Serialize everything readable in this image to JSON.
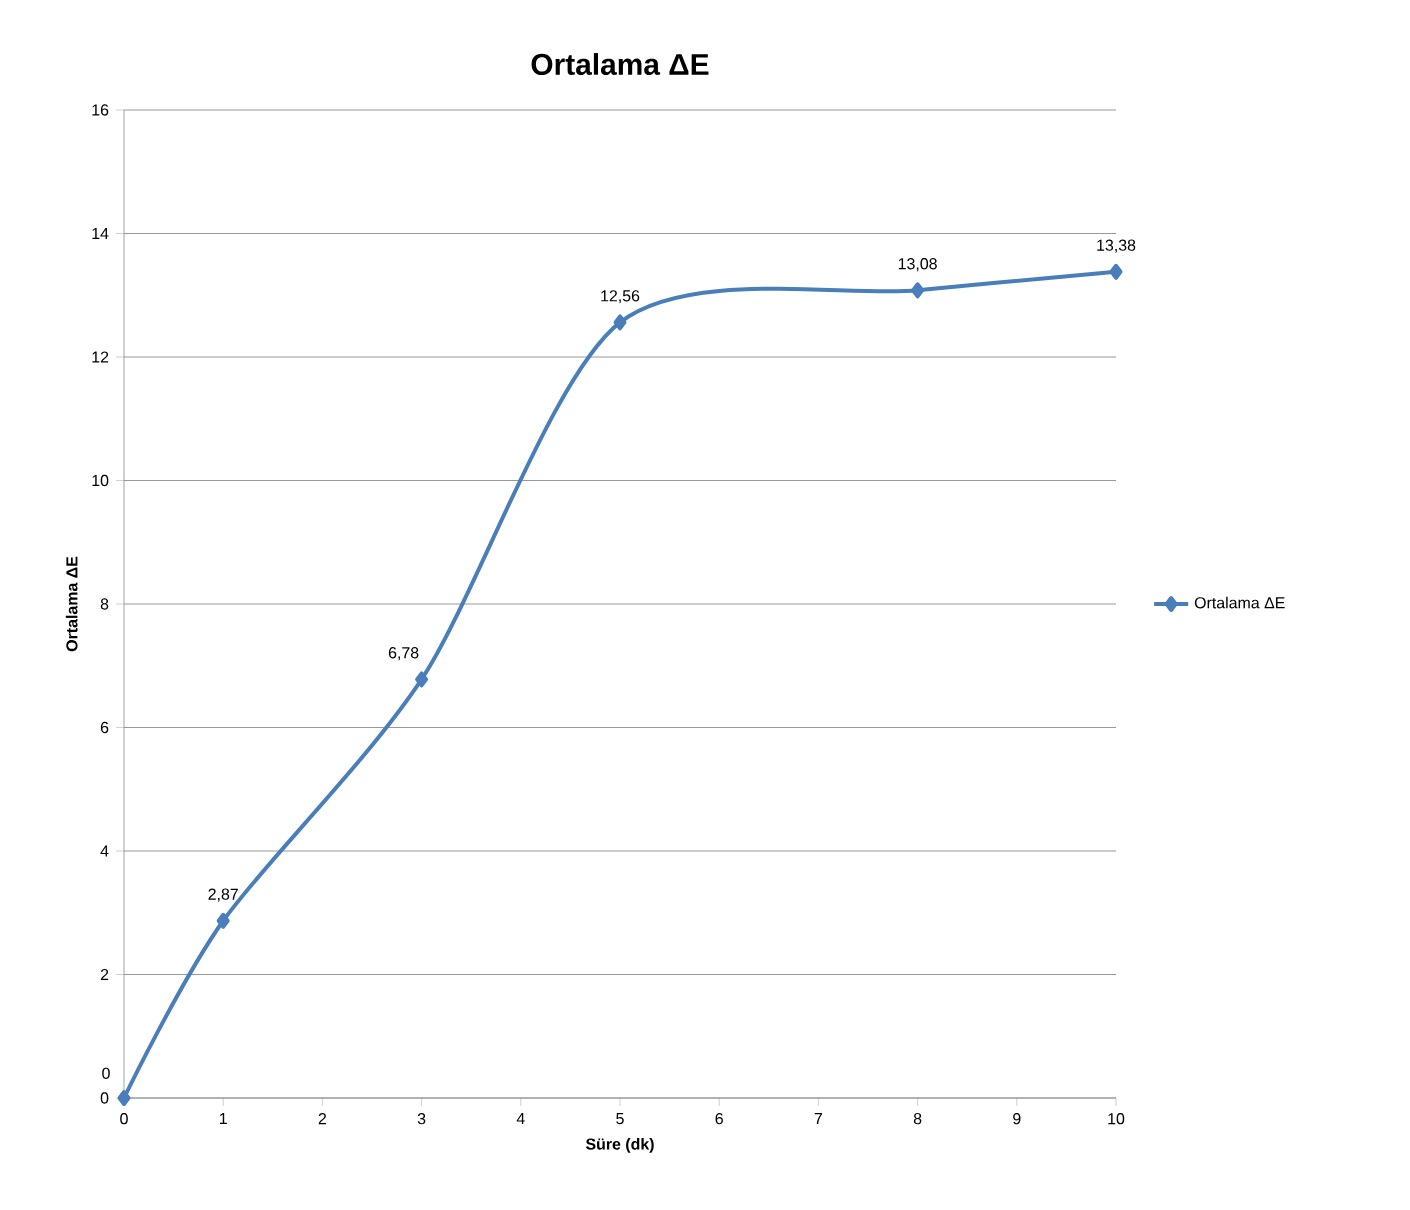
{
  "chart_data": {
    "type": "line",
    "title": "Ortalama ΔE",
    "xlabel": "Süre (dk)",
    "ylabel": "Ortalama ΔE",
    "xlim": [
      0,
      10
    ],
    "xticks": [
      0,
      1,
      2,
      3,
      4,
      5,
      6,
      7,
      8,
      9,
      10
    ],
    "ylim": [
      0,
      16
    ],
    "yticks": [
      0,
      2,
      4,
      6,
      8,
      10,
      12,
      14,
      16
    ],
    "grid": "y",
    "legend": "right",
    "marker": "diamond",
    "line_style": "solid",
    "series": [
      {
        "name": "Ortalama ΔE",
        "color": "#4a7ebb",
        "x": [
          0,
          1,
          3,
          5,
          8,
          10
        ],
        "values": [
          0,
          2.87,
          6.78,
          12.56,
          13.08,
          13.38
        ],
        "value_labels": [
          "0",
          "2,87",
          "6,78",
          "12,56",
          "13,08",
          "13,38"
        ]
      }
    ]
  }
}
